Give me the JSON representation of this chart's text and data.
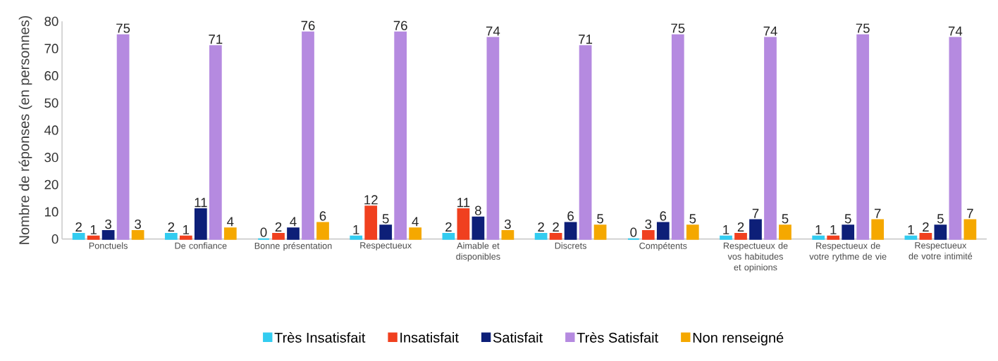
{
  "chart_data": {
    "type": "bar",
    "ylabel": "Nombre de réponses (en personnes)",
    "categories": [
      "Ponctuels",
      "De confiance",
      "Bonne présentation",
      "Respectueux",
      "Aimable et disponibles",
      "Discrets",
      "Compétents",
      "Respectueux de vos habitudes et opinions",
      "Respectueux de votre rythme de vie",
      "Respectueux de votre intimité"
    ],
    "series": [
      {
        "name": "Très Insatisfait",
        "color": "#33ccf0",
        "values": [
          2,
          2,
          0,
          1,
          2,
          2,
          0,
          1,
          1,
          1
        ]
      },
      {
        "name": "Insatisfait",
        "color": "#f0401f",
        "values": [
          1,
          1,
          2,
          12,
          11,
          2,
          3,
          2,
          1,
          2
        ]
      },
      {
        "name": "Satisfait",
        "color": "#0d1f78",
        "values": [
          3,
          11,
          4,
          5,
          8,
          6,
          6,
          7,
          5,
          5
        ]
      },
      {
        "name": "Très Satisfait",
        "color": "#b58ae0",
        "values": [
          75,
          71,
          76,
          76,
          74,
          71,
          75,
          74,
          75,
          74
        ]
      },
      {
        "name": "Non renseigné",
        "color": "#f5a800",
        "values": [
          3,
          4,
          6,
          4,
          3,
          5,
          5,
          5,
          7,
          7
        ]
      }
    ],
    "ylim": [
      0,
      80
    ],
    "yticks": [
      0,
      10,
      20,
      30,
      40,
      50,
      60,
      70,
      80
    ],
    "data_labels": true,
    "legend": "bottom"
  }
}
